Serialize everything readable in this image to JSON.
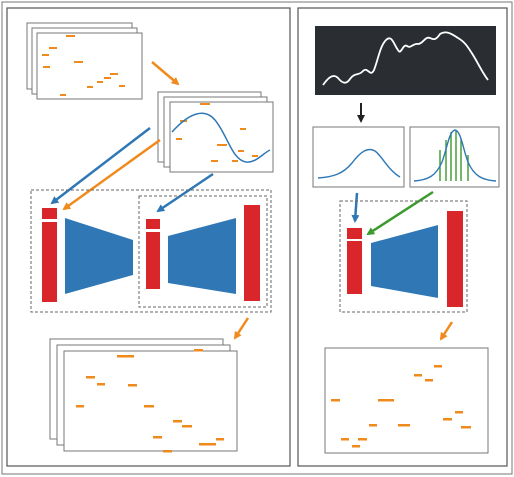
{
  "colors": {
    "orange": "#f08a1c",
    "blue": "#2f78b5",
    "red": "#d9262b",
    "green": "#3a9a2c",
    "dark": "#2a2d32",
    "panel_border": "#555555",
    "frame_border": "#777777",
    "dash": "#666666"
  },
  "left_panel": {
    "top_stack_pages": 3,
    "middle_stack_pages": 3,
    "bottom_stack_pages": 3,
    "arrows": [
      "orange",
      "blue",
      "orange",
      "blue",
      "orange"
    ],
    "blocks": [
      "encoder-decoder",
      "encoder-decoder"
    ]
  },
  "right_panel": {
    "signal_box": "white-curve-on-dark",
    "distributions": [
      "gaussian",
      "gaussian-with-green-lines"
    ],
    "arrows": [
      "black",
      "blue",
      "green",
      "orange"
    ],
    "blocks": [
      "encoder-decoder"
    ]
  }
}
